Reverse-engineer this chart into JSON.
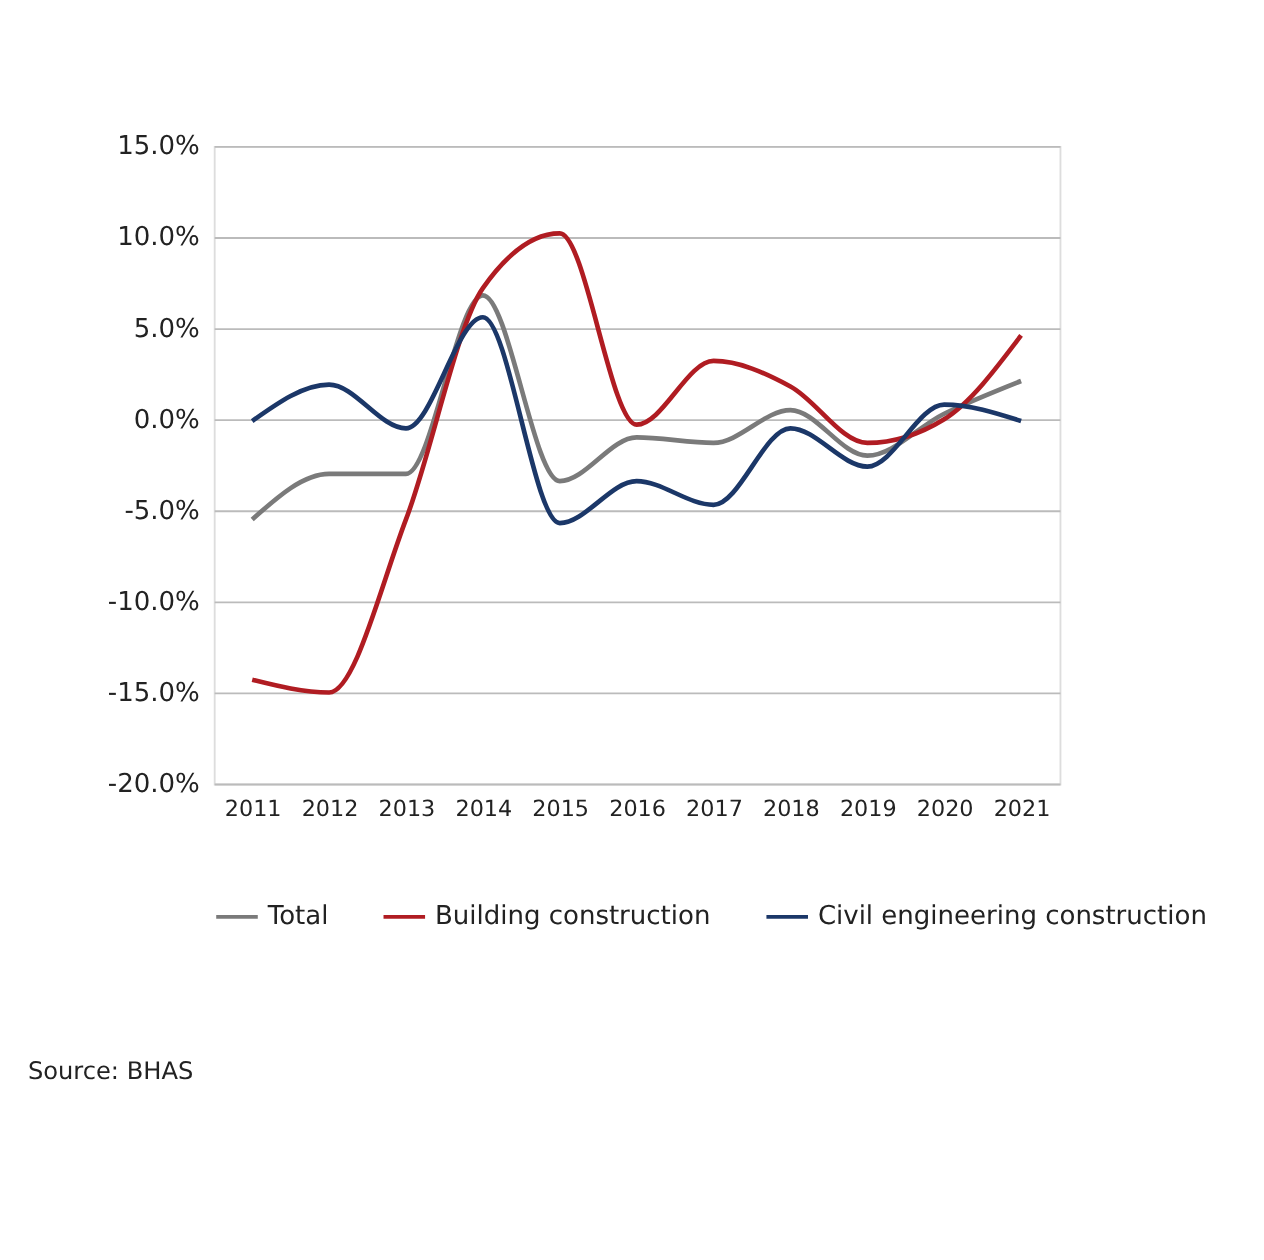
{
  "chart_data": {
    "type": "line",
    "categories": [
      "2011",
      "2012",
      "2013",
      "2014",
      "2015",
      "2016",
      "2017",
      "2018",
      "2019",
      "2020",
      "2021"
    ],
    "series": [
      {
        "name": "Total",
        "color": "#7a7a7a",
        "values": [
          -5.5,
          -3.0,
          -3.0,
          6.8,
          -3.4,
          -1.0,
          -1.3,
          0.5,
          -2.0,
          0.3,
          2.1
        ]
      },
      {
        "name": "Building construction",
        "color": "#b01c22",
        "values": [
          -14.3,
          -15.0,
          -5.5,
          7.2,
          10.2,
          -0.3,
          3.2,
          1.8,
          -1.3,
          0.0,
          4.6
        ]
      },
      {
        "name": "Civil engineering construction",
        "color": "#1b3768",
        "values": [
          -0.1,
          1.9,
          -0.5,
          5.6,
          -5.7,
          -3.4,
          -4.7,
          -0.5,
          -2.6,
          0.8,
          -0.1
        ]
      }
    ],
    "ylim": [
      -20,
      15
    ],
    "yticks": [
      {
        "value": -20,
        "label": "-20.0%"
      },
      {
        "value": -15,
        "label": "-15.0%"
      },
      {
        "value": -10,
        "label": "-10.0%"
      },
      {
        "value": -5,
        "label": "-5.0%"
      },
      {
        "value": 0,
        "label": "0.0%"
      },
      {
        "value": 5,
        "label": "5.0%"
      },
      {
        "value": 10,
        "label": "10.0%"
      },
      {
        "value": 15,
        "label": "15.0%"
      }
    ],
    "grid": "y",
    "legend": "bottom",
    "marker": "none",
    "line_style": "solid",
    "annotations": [
      "Source: BHAS"
    ]
  }
}
